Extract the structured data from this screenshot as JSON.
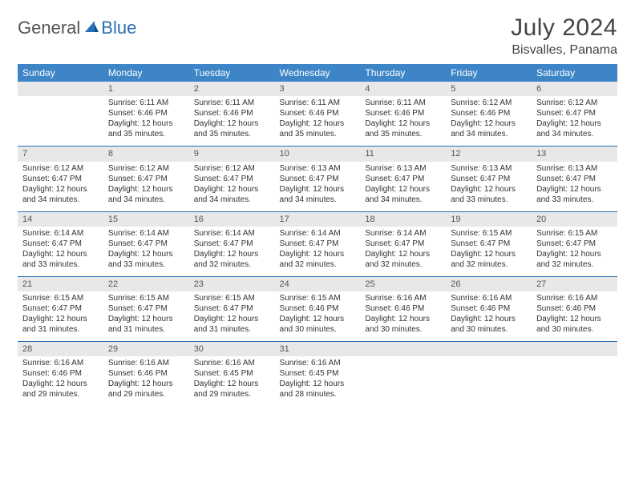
{
  "logo": {
    "text1": "General",
    "text2": "Blue"
  },
  "title": "July 2024",
  "location": "Bisvalles, Panama",
  "colors": {
    "header_bg": "#3d85c6",
    "header_text": "#ffffff",
    "daynum_bg": "#e8e8e8",
    "rule": "#2a6fb5",
    "logo_accent": "#2a6fb5",
    "body_text": "#333333"
  },
  "weekdays": [
    "Sunday",
    "Monday",
    "Tuesday",
    "Wednesday",
    "Thursday",
    "Friday",
    "Saturday"
  ],
  "weeks": [
    [
      null,
      {
        "n": "1",
        "sr": "6:11 AM",
        "ss": "6:46 PM",
        "dl": "12 hours and 35 minutes."
      },
      {
        "n": "2",
        "sr": "6:11 AM",
        "ss": "6:46 PM",
        "dl": "12 hours and 35 minutes."
      },
      {
        "n": "3",
        "sr": "6:11 AM",
        "ss": "6:46 PM",
        "dl": "12 hours and 35 minutes."
      },
      {
        "n": "4",
        "sr": "6:11 AM",
        "ss": "6:46 PM",
        "dl": "12 hours and 35 minutes."
      },
      {
        "n": "5",
        "sr": "6:12 AM",
        "ss": "6:46 PM",
        "dl": "12 hours and 34 minutes."
      },
      {
        "n": "6",
        "sr": "6:12 AM",
        "ss": "6:47 PM",
        "dl": "12 hours and 34 minutes."
      }
    ],
    [
      {
        "n": "7",
        "sr": "6:12 AM",
        "ss": "6:47 PM",
        "dl": "12 hours and 34 minutes."
      },
      {
        "n": "8",
        "sr": "6:12 AM",
        "ss": "6:47 PM",
        "dl": "12 hours and 34 minutes."
      },
      {
        "n": "9",
        "sr": "6:12 AM",
        "ss": "6:47 PM",
        "dl": "12 hours and 34 minutes."
      },
      {
        "n": "10",
        "sr": "6:13 AM",
        "ss": "6:47 PM",
        "dl": "12 hours and 34 minutes."
      },
      {
        "n": "11",
        "sr": "6:13 AM",
        "ss": "6:47 PM",
        "dl": "12 hours and 34 minutes."
      },
      {
        "n": "12",
        "sr": "6:13 AM",
        "ss": "6:47 PM",
        "dl": "12 hours and 33 minutes."
      },
      {
        "n": "13",
        "sr": "6:13 AM",
        "ss": "6:47 PM",
        "dl": "12 hours and 33 minutes."
      }
    ],
    [
      {
        "n": "14",
        "sr": "6:14 AM",
        "ss": "6:47 PM",
        "dl": "12 hours and 33 minutes."
      },
      {
        "n": "15",
        "sr": "6:14 AM",
        "ss": "6:47 PM",
        "dl": "12 hours and 33 minutes."
      },
      {
        "n": "16",
        "sr": "6:14 AM",
        "ss": "6:47 PM",
        "dl": "12 hours and 32 minutes."
      },
      {
        "n": "17",
        "sr": "6:14 AM",
        "ss": "6:47 PM",
        "dl": "12 hours and 32 minutes."
      },
      {
        "n": "18",
        "sr": "6:14 AM",
        "ss": "6:47 PM",
        "dl": "12 hours and 32 minutes."
      },
      {
        "n": "19",
        "sr": "6:15 AM",
        "ss": "6:47 PM",
        "dl": "12 hours and 32 minutes."
      },
      {
        "n": "20",
        "sr": "6:15 AM",
        "ss": "6:47 PM",
        "dl": "12 hours and 32 minutes."
      }
    ],
    [
      {
        "n": "21",
        "sr": "6:15 AM",
        "ss": "6:47 PM",
        "dl": "12 hours and 31 minutes."
      },
      {
        "n": "22",
        "sr": "6:15 AM",
        "ss": "6:47 PM",
        "dl": "12 hours and 31 minutes."
      },
      {
        "n": "23",
        "sr": "6:15 AM",
        "ss": "6:47 PM",
        "dl": "12 hours and 31 minutes."
      },
      {
        "n": "24",
        "sr": "6:15 AM",
        "ss": "6:46 PM",
        "dl": "12 hours and 30 minutes."
      },
      {
        "n": "25",
        "sr": "6:16 AM",
        "ss": "6:46 PM",
        "dl": "12 hours and 30 minutes."
      },
      {
        "n": "26",
        "sr": "6:16 AM",
        "ss": "6:46 PM",
        "dl": "12 hours and 30 minutes."
      },
      {
        "n": "27",
        "sr": "6:16 AM",
        "ss": "6:46 PM",
        "dl": "12 hours and 30 minutes."
      }
    ],
    [
      {
        "n": "28",
        "sr": "6:16 AM",
        "ss": "6:46 PM",
        "dl": "12 hours and 29 minutes."
      },
      {
        "n": "29",
        "sr": "6:16 AM",
        "ss": "6:46 PM",
        "dl": "12 hours and 29 minutes."
      },
      {
        "n": "30",
        "sr": "6:16 AM",
        "ss": "6:45 PM",
        "dl": "12 hours and 29 minutes."
      },
      {
        "n": "31",
        "sr": "6:16 AM",
        "ss": "6:45 PM",
        "dl": "12 hours and 28 minutes."
      },
      null,
      null,
      null
    ]
  ],
  "labels": {
    "sunrise": "Sunrise: ",
    "sunset": "Sunset: ",
    "daylight": "Daylight: "
  }
}
